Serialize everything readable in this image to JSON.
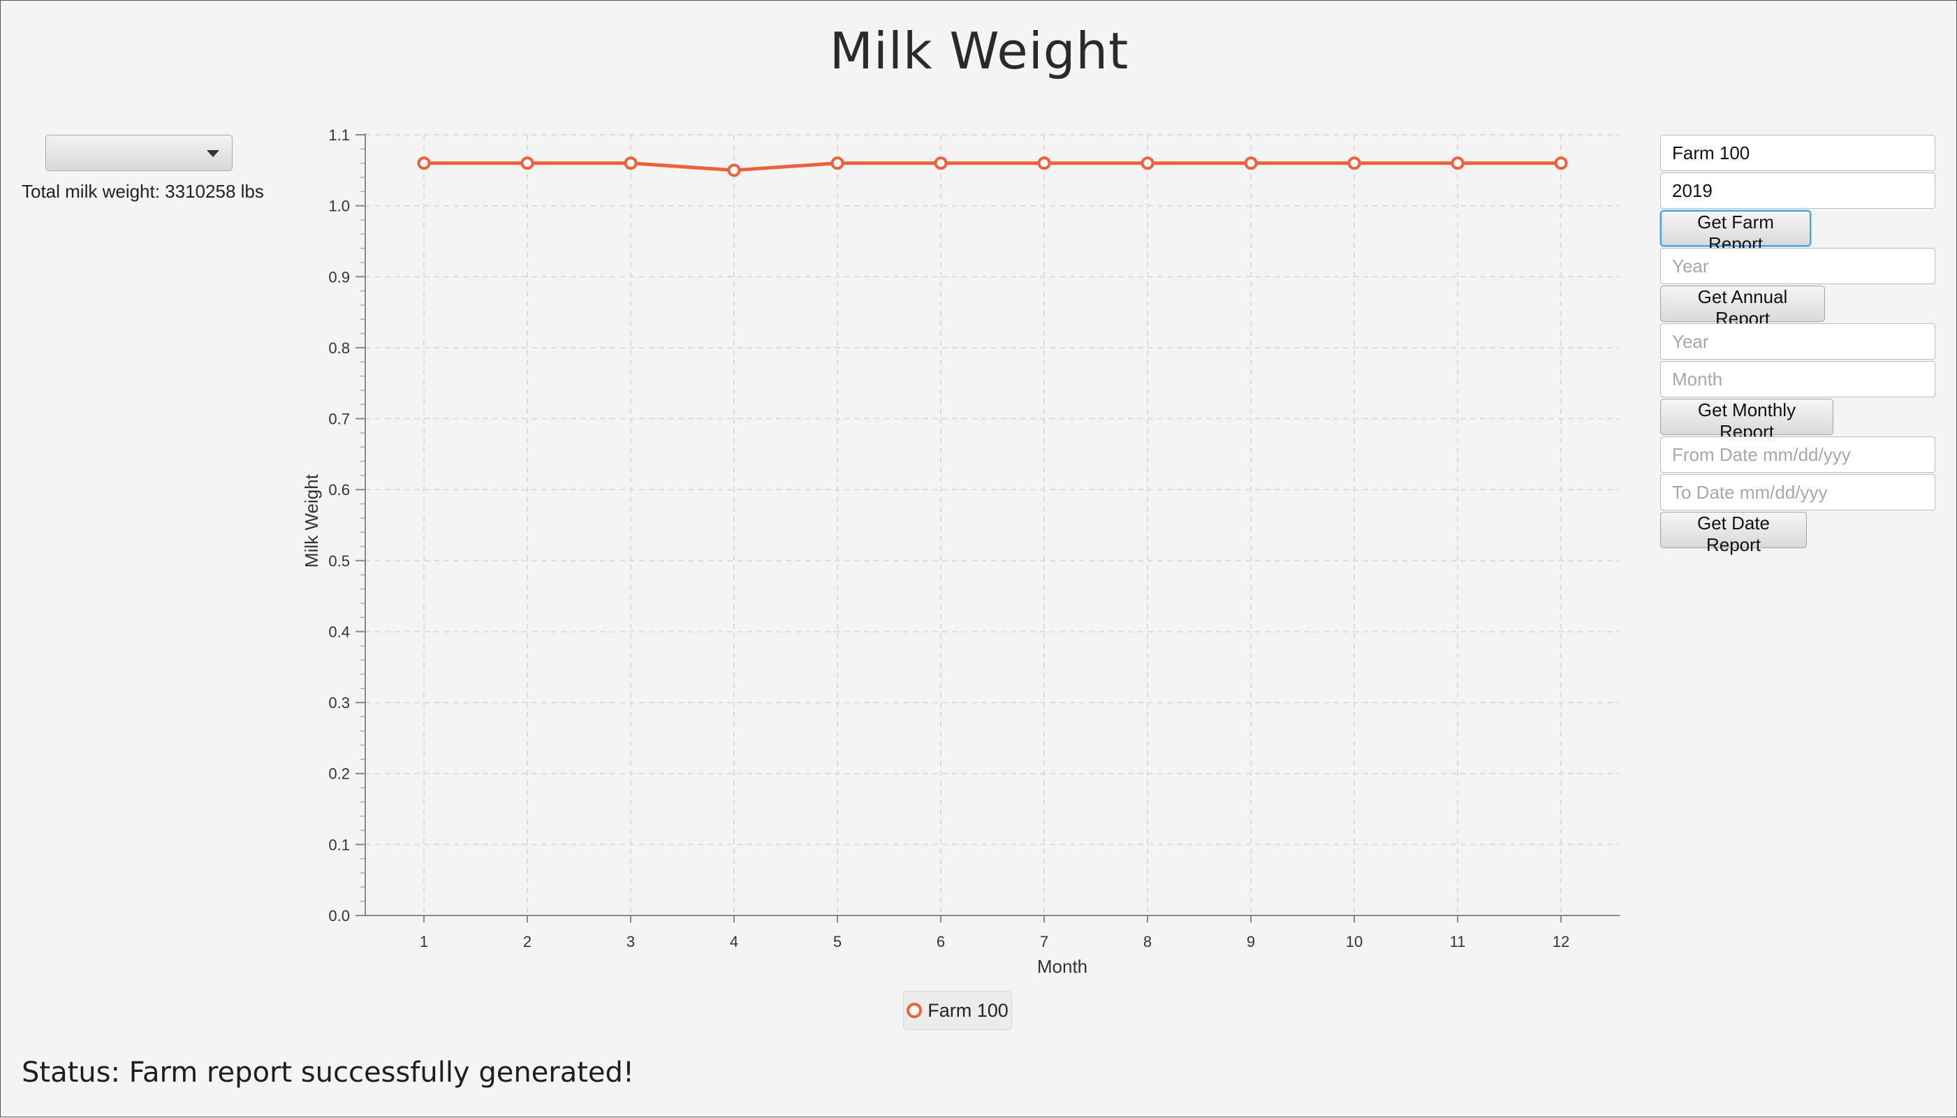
{
  "title": "Milk Weight",
  "left": {
    "combo_value": "",
    "total_text": "Total milk weight: 3310258 lbs"
  },
  "chart_data": {
    "type": "line",
    "x": [
      1,
      2,
      3,
      4,
      5,
      6,
      7,
      8,
      9,
      10,
      11,
      12
    ],
    "series": [
      {
        "name": "Farm 100",
        "values": [
          1.06,
          1.06,
          1.06,
          1.05,
          1.06,
          1.06,
          1.06,
          1.06,
          1.06,
          1.06,
          1.06,
          1.06
        ]
      }
    ],
    "xlabel": "Month",
    "ylabel": "Milk Weight",
    "ylim": [
      0.0,
      1.1
    ],
    "yticks": [
      "0.0",
      "0.1",
      "0.2",
      "0.3",
      "0.4",
      "0.5",
      "0.6",
      "0.7",
      "0.8",
      "0.9",
      "1.0",
      "1.1"
    ],
    "xticks": [
      "1",
      "2",
      "3",
      "4",
      "5",
      "6",
      "7",
      "8",
      "9",
      "10",
      "11",
      "12"
    ],
    "grid": true,
    "legend_position": "bottom",
    "series_color": "#f0603a"
  },
  "legend": {
    "label": "Farm 100"
  },
  "panel": {
    "farm_value": "Farm 100",
    "year_value": "2019",
    "farm_report_button": "Get Farm Report",
    "annual_year_placeholder": "Year",
    "annual_report_button": "Get Annual Report",
    "monthly_year_placeholder": "Year",
    "monthly_month_placeholder": "Month",
    "monthly_report_button": "Get Monthly Report",
    "from_date_placeholder": "From Date mm/dd/yyy",
    "to_date_placeholder": "To Date mm/dd/yyy",
    "date_report_button": "Get Date Report"
  },
  "status": "Status: Farm report successfully generated!"
}
